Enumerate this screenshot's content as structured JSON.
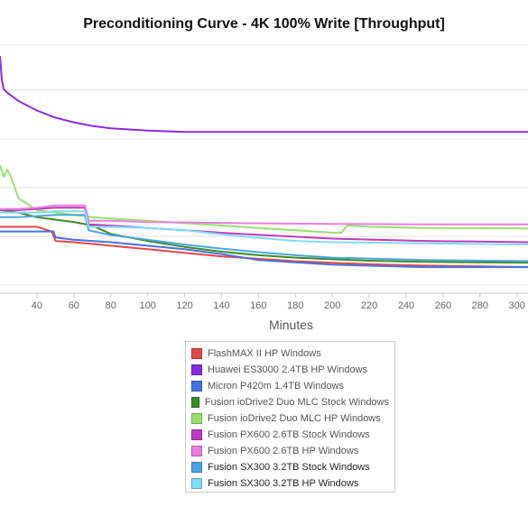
{
  "chart_data": {
    "type": "line",
    "title": "Preconditioning Curve - 4K 100% Write [Throughput]",
    "xlabel": "Minutes",
    "ylabel": "",
    "xlim": [
      20,
      306
    ],
    "ylim": [
      0,
      100
    ],
    "x_ticks": [
      "40",
      "60",
      "80",
      "100",
      "120",
      "140",
      "160",
      "180",
      "200",
      "220",
      "240",
      "260",
      "280",
      "300"
    ],
    "x_tick_values": [
      40,
      60,
      80,
      100,
      120,
      140,
      160,
      180,
      200,
      220,
      240,
      260,
      280,
      300
    ],
    "grid": "horizontal",
    "legend_position": "bottom",
    "series": [
      {
        "name": "FlashMAX II HP Windows",
        "color": "#e34a4a",
        "x": [
          20,
          30,
          40,
          48,
          50,
          60,
          80,
          100,
          120,
          140,
          160,
          180,
          200,
          220,
          240,
          260,
          280,
          306
        ],
        "y": [
          28,
          28,
          28,
          26,
          22,
          21.5,
          20,
          18.5,
          17,
          15.5,
          14.5,
          13.5,
          12.8,
          12.2,
          11.8,
          11.5,
          11.3,
          11
        ]
      },
      {
        "name": "Huawei ES3000 2.4TB HP Windows",
        "color": "#8a2be2",
        "x": [
          20,
          21,
          22,
          24,
          30,
          40,
          50,
          60,
          70,
          80,
          100,
          120,
          150,
          200,
          250,
          306
        ],
        "y": [
          100,
          90,
          86,
          84.5,
          81,
          77,
          74,
          72,
          70.5,
          69.5,
          68.5,
          68,
          68,
          68,
          68,
          68
        ]
      },
      {
        "name": "Micron P420m 1.4TB Windows",
        "color": "#4a6fe0",
        "x": [
          20,
          30,
          40,
          49,
          50,
          60,
          80,
          100,
          120,
          140,
          160,
          200,
          250,
          306
        ],
        "y": [
          26,
          26,
          26,
          26,
          23.5,
          22.5,
          21.5,
          20,
          18.5,
          16.5,
          14,
          12,
          11,
          11
        ]
      },
      {
        "name": "Fusion ioDrive2 Duo MLC Stock Windows",
        "color": "#3c8c28",
        "x": [
          20,
          30,
          40,
          50,
          60,
          70,
          80,
          100,
          120,
          140,
          160,
          180,
          200,
          220,
          250,
          306
        ],
        "y": [
          35,
          34,
          32,
          31,
          30,
          28.5,
          25,
          22,
          19.5,
          17.5,
          16,
          15,
          14.3,
          13.7,
          13.2,
          12.8
        ]
      },
      {
        "name": "Fusion ioDrive2 Duo MLC HP Windows",
        "color": "#98e06e",
        "x": [
          20,
          22,
          24,
          26,
          30,
          40,
          50,
          60,
          70,
          80,
          100,
          120,
          140,
          160,
          180,
          200,
          205,
          208,
          220,
          250,
          306
        ],
        "y": [
          54,
          49,
          52,
          49,
          40,
          35,
          34,
          33,
          32,
          31.5,
          30.5,
          29.5,
          28.5,
          27.5,
          26.5,
          25.5,
          25.5,
          28.5,
          28,
          27.5,
          27.3
        ]
      },
      {
        "name": "Fusion PX600 2.6TB Stock Windows",
        "color": "#c03ac0",
        "x": [
          20,
          30,
          40,
          50,
          60,
          66,
          68,
          80,
          100,
          120,
          150,
          200,
          250,
          306
        ],
        "y": [
          35,
          35,
          35.5,
          36,
          36,
          36,
          29,
          28.5,
          27.5,
          26.5,
          25,
          23,
          22,
          21.5
        ]
      },
      {
        "name": "Fusion PX600 2.6TB HP Windows",
        "color": "#e87ee0",
        "x": [
          20,
          30,
          40,
          50,
          60,
          66,
          68,
          80,
          100,
          120,
          150,
          200,
          250,
          306
        ],
        "y": [
          35.5,
          35.5,
          36,
          37,
          37,
          37,
          30.5,
          30.5,
          30,
          29.8,
          29.5,
          29.2,
          29,
          29
        ]
      },
      {
        "name": "Fusion SX300 3.2TB Stock Windows",
        "color": "#4aa6e0",
        "x": [
          20,
          30,
          40,
          50,
          60,
          66,
          68,
          80,
          100,
          120,
          140,
          160,
          180,
          200,
          250,
          306
        ],
        "y": [
          32,
          32,
          32.5,
          33,
          33,
          33,
          26.5,
          24.5,
          22.5,
          20.5,
          18.8,
          17.3,
          16,
          15,
          14,
          13.5
        ]
      },
      {
        "name": "Fusion SX300 3.2TB HP Windows",
        "color": "#80dcf8",
        "x": [
          20,
          30,
          40,
          50,
          60,
          66,
          68,
          80,
          100,
          120,
          150,
          180,
          200,
          250,
          306
        ],
        "y": [
          34,
          34,
          34,
          34.5,
          34.5,
          34.5,
          28,
          28,
          27.5,
          26.5,
          24,
          22,
          21.5,
          21,
          20.5
        ]
      }
    ]
  }
}
